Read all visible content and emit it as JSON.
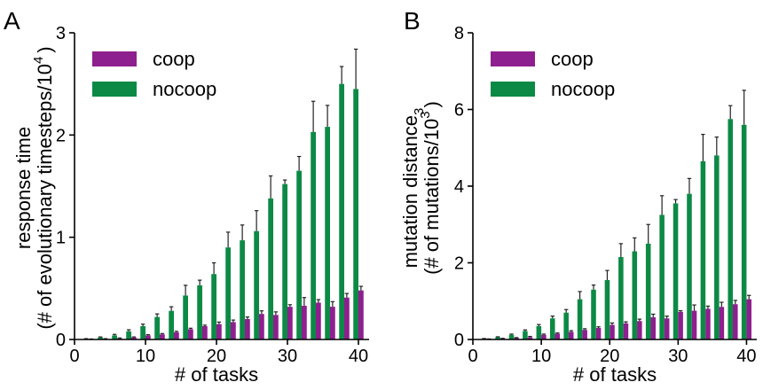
{
  "colors": {
    "coop": "#8e1f8e",
    "nocoop": "#0c8a45",
    "error": "#222222",
    "axis": "#000000"
  },
  "chart_data": [
    {
      "type": "bar",
      "panel_label": "A",
      "ylabel_line1": "response time",
      "ylabel_line2_main": "(# of evolutionary timesteps/10",
      "ylabel_line2_sup": "4",
      "ylabel_line2_end": ")",
      "xlabel": "# of tasks",
      "x": [
        2,
        4,
        6,
        8,
        10,
        12,
        14,
        16,
        18,
        20,
        22,
        24,
        26,
        28,
        30,
        32,
        34,
        36,
        38,
        40
      ],
      "xlim": [
        0,
        41.5
      ],
      "ylim": [
        0,
        3
      ],
      "xticks": [
        "0",
        "10",
        "20",
        "30",
        "40"
      ],
      "xtick_values": [
        0,
        10,
        20,
        30,
        40
      ],
      "yticks": [
        "0",
        "1",
        "2",
        "3"
      ],
      "ytick_values": [
        0,
        1,
        2,
        3
      ],
      "legend": [
        "coop",
        "nocoop"
      ],
      "legend_position": "top-left",
      "series": [
        {
          "name": "coop",
          "values": [
            0.002,
            0.005,
            0.01,
            0.02,
            0.04,
            0.05,
            0.07,
            0.1,
            0.13,
            0.15,
            0.17,
            0.2,
            0.25,
            0.24,
            0.32,
            0.33,
            0.36,
            0.32,
            0.41,
            0.48
          ],
          "errors": [
            0.003,
            0.003,
            0.005,
            0.005,
            0.007,
            0.008,
            0.01,
            0.01,
            0.01,
            0.02,
            0.02,
            0.02,
            0.03,
            0.03,
            0.02,
            0.08,
            0.03,
            0.05,
            0.04,
            0.04
          ]
        },
        {
          "name": "nocoop",
          "values": [
            0.005,
            0.02,
            0.04,
            0.08,
            0.13,
            0.22,
            0.28,
            0.43,
            0.53,
            0.64,
            0.9,
            0.97,
            1.06,
            1.38,
            1.52,
            1.65,
            2.03,
            2.08,
            2.5,
            2.45
          ],
          "errors": [
            0.003,
            0.005,
            0.01,
            0.015,
            0.02,
            0.03,
            0.04,
            0.1,
            0.05,
            0.11,
            0.15,
            0.15,
            0.2,
            0.22,
            0.04,
            0.14,
            0.3,
            0.21,
            0.17,
            0.39
          ]
        }
      ]
    },
    {
      "type": "bar",
      "panel_label": "B",
      "ylabel_line1_main": "mutation distance",
      "ylabel_line1_sub": "3",
      "ylabel_line2": "(# of mutations/10",
      "ylabel_line2_end": ")",
      "xlabel": "# of tasks",
      "x": [
        2,
        4,
        6,
        8,
        10,
        12,
        14,
        16,
        18,
        20,
        22,
        24,
        26,
        28,
        30,
        32,
        34,
        36,
        38,
        40
      ],
      "xlim": [
        0,
        41.5
      ],
      "ylim": [
        0,
        8
      ],
      "xticks": [
        "0",
        "10",
        "20",
        "30",
        "40"
      ],
      "xtick_values": [
        0,
        10,
        20,
        30,
        40
      ],
      "yticks": [
        "0",
        "2",
        "4",
        "6",
        "8"
      ],
      "ytick_values": [
        0,
        2,
        4,
        6,
        8
      ],
      "legend": [
        "coop",
        "nocoop"
      ],
      "legend_position": "top-left",
      "series": [
        {
          "name": "coop",
          "values": [
            0.01,
            0.02,
            0.04,
            0.06,
            0.12,
            0.15,
            0.2,
            0.25,
            0.3,
            0.38,
            0.42,
            0.48,
            0.58,
            0.55,
            0.72,
            0.75,
            0.8,
            0.85,
            0.92,
            1.05
          ],
          "errors": [
            0.005,
            0.01,
            0.01,
            0.02,
            0.02,
            0.02,
            0.03,
            0.03,
            0.03,
            0.05,
            0.04,
            0.05,
            0.08,
            0.06,
            0.03,
            0.15,
            0.07,
            0.12,
            0.1,
            0.1
          ]
        },
        {
          "name": "nocoop",
          "values": [
            0.02,
            0.06,
            0.12,
            0.22,
            0.35,
            0.55,
            0.7,
            1.05,
            1.3,
            1.55,
            2.15,
            2.3,
            2.5,
            3.25,
            3.55,
            3.8,
            4.65,
            4.8,
            5.75,
            5.6
          ],
          "errors": [
            0.005,
            0.01,
            0.02,
            0.03,
            0.04,
            0.06,
            0.08,
            0.2,
            0.12,
            0.25,
            0.35,
            0.35,
            0.5,
            0.5,
            0.1,
            0.4,
            0.7,
            0.48,
            0.35,
            0.9
          ]
        }
      ]
    }
  ]
}
